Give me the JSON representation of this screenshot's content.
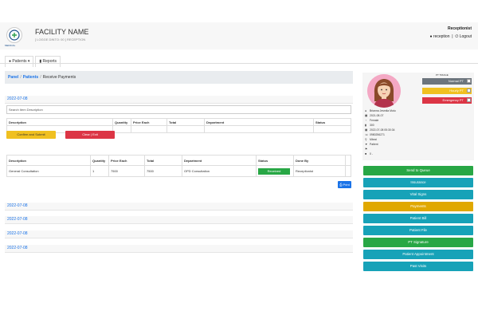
{
  "header": {
    "facility_name": "FACILITY NAME",
    "facility_sub": "[ LOGGE DINTO: 00 ]  RECEPTION",
    "logo_text": "MEDICAL",
    "role": "Receptionist",
    "user": "reception",
    "logout": "Logout"
  },
  "tabs": [
    {
      "label": "Patients ▾"
    },
    {
      "label": "Reports"
    }
  ],
  "breadcrumb": {
    "panel": "Panel",
    "patients": "Patients",
    "current": "Receive Payments"
  },
  "dates": {
    "d1": "2022-07-08",
    "d2": "2022-07-08",
    "d3": "2022-07-08",
    "d4": "2022-07-08",
    "d5": "2022-07-08"
  },
  "search": {
    "placeholder": "Search Item Description"
  },
  "item_table": {
    "headers": [
      "Description",
      "Quantity",
      "Price Each",
      "Total",
      "Department",
      "Status"
    ]
  },
  "buttons": {
    "confirm": "Confirm and Submit",
    "clear": "Clear | Exit",
    "print": "Print"
  },
  "payments_table": {
    "headers": [
      "Description",
      "Quantity",
      "Price Each",
      "Total",
      "Department",
      "Status",
      "Done By"
    ],
    "rows": [
      {
        "description": "General Consultation",
        "quantity": "1",
        "price": "7500",
        "total": "7500",
        "department": "OPD Consultation",
        "status": "Received",
        "done_by": "Receptionist"
      }
    ]
  },
  "triage": {
    "label": "PT TRIAGE",
    "normal": "Normal PT",
    "hurry": "Hourly PT",
    "emergency": "Emergency PT"
  },
  "patient": {
    "name": "Brianna Jesmila Mutu",
    "dob": "2021-08-07",
    "gender": "Female",
    "number": "300",
    "date": "2022-07-08 05:30:34",
    "phone": "0980256271",
    "location": "Mbezi",
    "type": "Patient",
    "balance": "0 -"
  },
  "actions": [
    "Send to Queue",
    "Insurance",
    "Vital Signs",
    "Payments",
    "Patient Bill",
    "Patient File",
    "PT Signature",
    "Patient Appointment",
    "Past Visits"
  ],
  "colors": {
    "green": "#28a745",
    "teal": "#17a2b8",
    "yellow": "#e0a800",
    "red": "#dc3545",
    "gray": "#6c757d",
    "link": "#1a73e8"
  }
}
